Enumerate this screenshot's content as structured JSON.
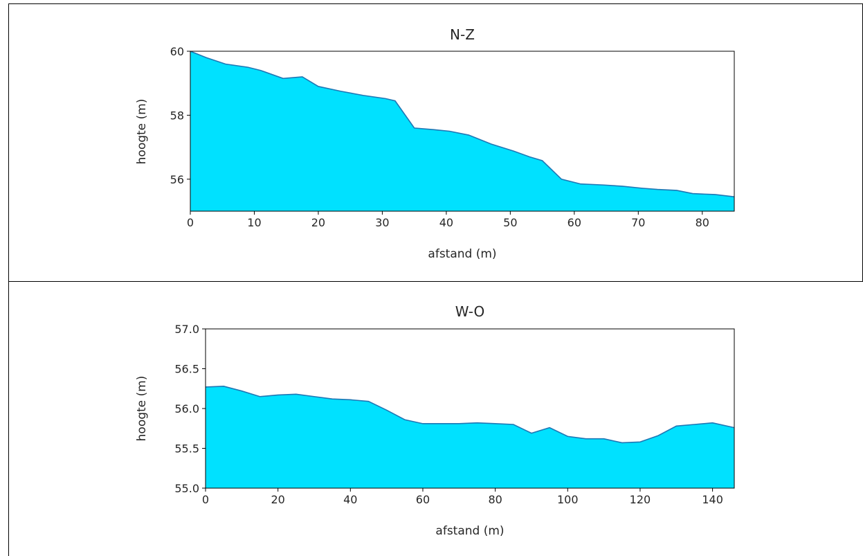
{
  "figure": {
    "line_color": "#1f77b4",
    "fill_color": "#00e1ff",
    "border_color": "#000000"
  },
  "chart_data": [
    {
      "type": "area",
      "title": "N-Z",
      "xlabel": "afstand (m)",
      "ylabel": "hoogte (m)",
      "xlim": [
        0,
        85
      ],
      "ylim": [
        55,
        60
      ],
      "xticks": [
        "0",
        "10",
        "20",
        "30",
        "40",
        "50",
        "60",
        "70",
        "80"
      ],
      "yticks": [
        "56",
        "58",
        "60"
      ],
      "x": [
        0,
        2.5,
        5.5,
        9,
        11,
        14.5,
        17.5,
        20,
        23.5,
        27,
        30.5,
        32,
        35,
        38,
        40.5,
        43.5,
        47,
        50.5,
        53,
        55,
        58,
        61,
        64.5,
        67.5,
        70.5,
        73,
        76,
        78.5,
        82,
        85
      ],
      "y": [
        60.0,
        59.8,
        59.6,
        59.5,
        59.4,
        59.15,
        59.2,
        58.9,
        58.75,
        58.62,
        58.52,
        58.45,
        57.6,
        57.55,
        57.5,
        57.38,
        57.1,
        56.88,
        56.7,
        56.58,
        56.0,
        55.85,
        55.82,
        55.78,
        55.72,
        55.68,
        55.65,
        55.55,
        55.52,
        55.45
      ]
    },
    {
      "type": "area",
      "title": "W-O",
      "xlabel": "afstand (m)",
      "ylabel": "hoogte (m)",
      "xlim": [
        0,
        146
      ],
      "ylim": [
        55.0,
        57.0
      ],
      "xticks": [
        "0",
        "20",
        "40",
        "60",
        "80",
        "100",
        "120",
        "140"
      ],
      "yticks": [
        "55.0",
        "55.5",
        "56.0",
        "56.5",
        "57.0"
      ],
      "x": [
        0,
        5,
        10,
        15,
        20,
        25,
        30,
        35,
        40,
        45,
        50,
        55,
        60,
        65,
        70,
        75,
        80,
        85,
        90,
        95,
        100,
        105,
        110,
        115,
        120,
        125,
        130,
        135,
        140,
        146
      ],
      "y": [
        56.27,
        56.28,
        56.22,
        56.15,
        56.17,
        56.18,
        56.15,
        56.12,
        56.11,
        56.09,
        55.98,
        55.86,
        55.81,
        55.81,
        55.81,
        55.82,
        55.81,
        55.8,
        55.69,
        55.76,
        55.65,
        55.62,
        55.62,
        55.57,
        55.58,
        55.66,
        55.78,
        55.8,
        55.82,
        55.76
      ]
    }
  ]
}
